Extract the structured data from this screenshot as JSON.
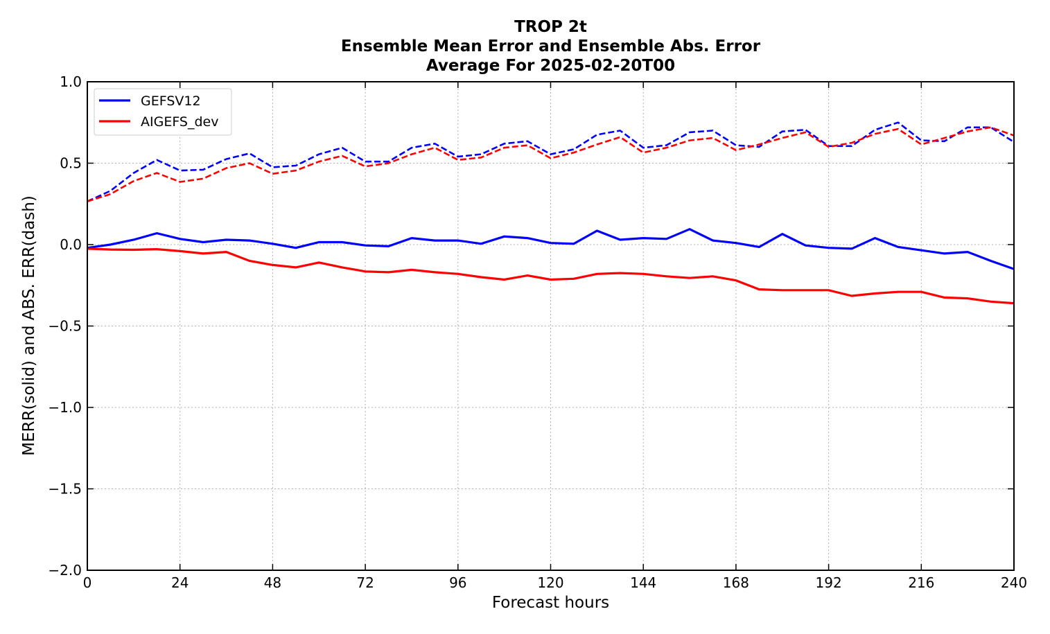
{
  "chart_data": {
    "type": "line",
    "title_lines": [
      "TROP 2t",
      "Ensemble Mean Error and Ensemble Abs. Error",
      "Average For 2025-02-20T00"
    ],
    "xlabel": "Forecast hours",
    "ylabel": "MERR(solid) and ABS. ERR(dash)",
    "xlim": [
      0,
      240
    ],
    "ylim": [
      -2.0,
      1.0
    ],
    "x_ticks": [
      0,
      24,
      48,
      72,
      96,
      120,
      144,
      168,
      192,
      216,
      240
    ],
    "y_ticks": [
      1.0,
      0.5,
      0.0,
      -0.5,
      -1.0,
      -1.5,
      -2.0
    ],
    "y_tick_labels": [
      "1.0",
      "0.5",
      "0.0",
      "−0.5",
      "−1.0",
      "−1.5",
      "−2.0"
    ],
    "grid": true,
    "legend_position": "top-left",
    "x": [
      0,
      6,
      12,
      18,
      24,
      30,
      36,
      42,
      48,
      54,
      60,
      66,
      72,
      78,
      84,
      90,
      96,
      102,
      108,
      114,
      120,
      126,
      132,
      138,
      144,
      150,
      156,
      162,
      168,
      174,
      180,
      186,
      192,
      198,
      204,
      210,
      216,
      222,
      228,
      234,
      240
    ],
    "series": [
      {
        "name": "GEFSV12",
        "color": "#0000ff",
        "merr": [
          -0.02,
          0.0,
          0.03,
          0.07,
          0.035,
          0.015,
          0.03,
          0.025,
          0.005,
          -0.02,
          0.015,
          0.015,
          -0.005,
          -0.01,
          0.04,
          0.025,
          0.025,
          0.005,
          0.05,
          0.04,
          0.01,
          0.005,
          0.085,
          0.03,
          0.04,
          0.035,
          0.095,
          0.025,
          0.01,
          -0.015,
          0.065,
          -0.005,
          -0.02,
          -0.025,
          0.04,
          -0.015,
          -0.035,
          -0.055,
          -0.045,
          -0.1,
          -0.15
        ],
        "abs_err": [
          0.265,
          0.33,
          0.44,
          0.52,
          0.455,
          0.46,
          0.525,
          0.56,
          0.475,
          0.485,
          0.555,
          0.595,
          0.51,
          0.51,
          0.595,
          0.62,
          0.54,
          0.555,
          0.62,
          0.635,
          0.555,
          0.585,
          0.675,
          0.7,
          0.595,
          0.61,
          0.69,
          0.7,
          0.61,
          0.6,
          0.695,
          0.705,
          0.605,
          0.605,
          0.705,
          0.75,
          0.64,
          0.635,
          0.72,
          0.72,
          0.63
        ]
      },
      {
        "name": "AIGEFS_dev",
        "color": "#ff0000",
        "merr": [
          -0.025,
          -0.03,
          -0.032,
          -0.028,
          -0.04,
          -0.055,
          -0.045,
          -0.1,
          -0.125,
          -0.14,
          -0.11,
          -0.14,
          -0.165,
          -0.17,
          -0.155,
          -0.17,
          -0.18,
          -0.2,
          -0.215,
          -0.19,
          -0.215,
          -0.21,
          -0.18,
          -0.175,
          -0.18,
          -0.195,
          -0.205,
          -0.195,
          -0.22,
          -0.275,
          -0.28,
          -0.28,
          -0.28,
          -0.315,
          -0.3,
          -0.29,
          -0.29,
          -0.325,
          -0.33,
          -0.35,
          -0.36
        ],
        "abs_err": [
          0.265,
          0.31,
          0.39,
          0.44,
          0.385,
          0.405,
          0.47,
          0.5,
          0.435,
          0.455,
          0.51,
          0.545,
          0.48,
          0.5,
          0.555,
          0.595,
          0.52,
          0.535,
          0.595,
          0.61,
          0.53,
          0.565,
          0.615,
          0.66,
          0.565,
          0.595,
          0.64,
          0.655,
          0.58,
          0.615,
          0.655,
          0.69,
          0.6,
          0.625,
          0.68,
          0.71,
          0.615,
          0.655,
          0.695,
          0.72,
          0.67
        ]
      }
    ]
  }
}
